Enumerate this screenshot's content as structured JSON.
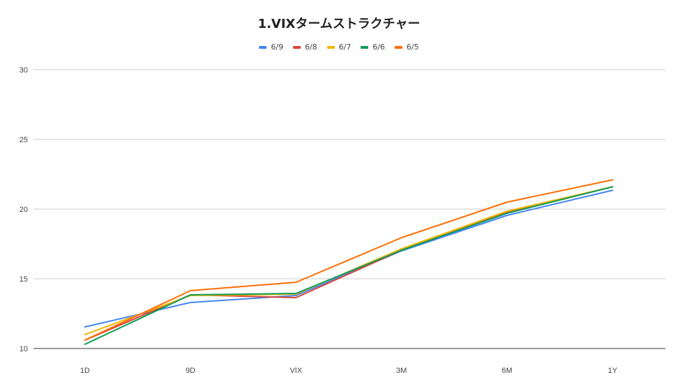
{
  "chart_data": {
    "type": "line",
    "title": "1.VIXタームストラクチャー",
    "xlabel": "",
    "ylabel": "",
    "categories": [
      "1D",
      "9D",
      "VIX",
      "3M",
      "6M",
      "1Y"
    ],
    "ylim": [
      10,
      30
    ],
    "yticks": [
      10,
      15,
      20,
      25,
      30
    ],
    "grid": true,
    "legend_position": "top",
    "series": [
      {
        "name": "6/9",
        "color": "#4285f4",
        "values": [
          11.55,
          13.3,
          13.8,
          17.0,
          19.55,
          21.35
        ]
      },
      {
        "name": "6/8",
        "color": "#db4437",
        "values": [
          10.6,
          13.85,
          13.65,
          17.05,
          19.75,
          21.6
        ]
      },
      {
        "name": "6/7",
        "color": "#f4b400",
        "values": [
          11.0,
          13.8,
          13.9,
          17.15,
          19.85,
          21.6
        ]
      },
      {
        "name": "6/6",
        "color": "#0f9d58",
        "values": [
          10.3,
          13.85,
          13.95,
          17.05,
          19.7,
          21.6
        ]
      },
      {
        "name": "6/5",
        "color": "#ff6d01",
        "values": [
          10.6,
          14.15,
          14.75,
          17.95,
          20.5,
          22.1
        ]
      }
    ]
  }
}
